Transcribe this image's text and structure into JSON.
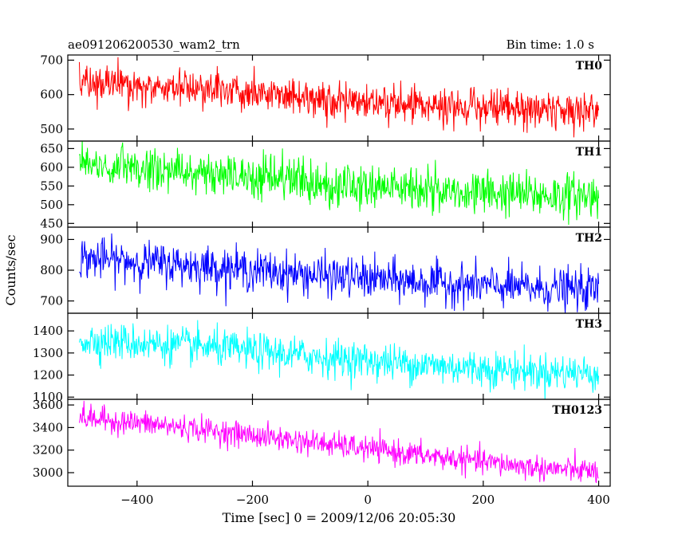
{
  "chart_data": {
    "type": "line",
    "title": "ae091206200530_wam2_trn",
    "bin_time": "Bin time: 1.0 s",
    "xlabel": "Time [sec] 0 = 2009/12/06 20:05:30",
    "ylabel": "Counts/sec",
    "xlim": [
      -520,
      420
    ],
    "x_range": [
      -500,
      400
    ],
    "x_ticks": [
      -400,
      -200,
      0,
      200,
      400
    ],
    "x_tick_labels": [
      "−400",
      "−200",
      "0",
      "200",
      "400"
    ],
    "grid": false,
    "series": [
      {
        "name": "TH0",
        "color": "#ff0000",
        "ylim": [
          465,
          715
        ],
        "y_ticks": [
          500,
          600,
          700
        ],
        "trend": [
          [
            -500,
            640
          ],
          [
            -300,
            615
          ],
          [
            -100,
            590
          ],
          [
            100,
            570
          ],
          [
            300,
            555
          ],
          [
            400,
            550
          ]
        ],
        "noise_sd": 27
      },
      {
        "name": "TH1",
        "color": "#00ff00",
        "ylim": [
          440,
          670
        ],
        "y_ticks": [
          450,
          500,
          550,
          600,
          650
        ],
        "trend": [
          [
            -500,
            610
          ],
          [
            -300,
            585
          ],
          [
            -100,
            560
          ],
          [
            100,
            540
          ],
          [
            300,
            525
          ],
          [
            400,
            525
          ]
        ],
        "noise_sd": 30
      },
      {
        "name": "TH2",
        "color": "#0000ff",
        "ylim": [
          660,
          940
        ],
        "y_ticks": [
          700,
          800,
          900
        ],
        "trend": [
          [
            -500,
            840
          ],
          [
            -300,
            815
          ],
          [
            -100,
            785
          ],
          [
            100,
            760
          ],
          [
            300,
            740
          ],
          [
            400,
            735
          ]
        ],
        "noise_sd": 33
      },
      {
        "name": "TH3",
        "color": "#00ffff",
        "ylim": [
          1090,
          1480
        ],
        "y_ticks": [
          1100,
          1200,
          1300,
          1400
        ],
        "trend": [
          [
            -500,
            1360
          ],
          [
            -300,
            1330
          ],
          [
            -100,
            1285
          ],
          [
            100,
            1245
          ],
          [
            300,
            1215
          ],
          [
            400,
            1210
          ]
        ],
        "noise_sd": 42
      },
      {
        "name": "TH0123",
        "color": "#ff00ff",
        "ylim": [
          2880,
          3650
        ],
        "y_ticks": [
          3000,
          3200,
          3400,
          3600
        ],
        "trend": [
          [
            -500,
            3490
          ],
          [
            -300,
            3390
          ],
          [
            -100,
            3270
          ],
          [
            100,
            3150
          ],
          [
            300,
            3040
          ],
          [
            400,
            3010
          ]
        ],
        "noise_sd": 55
      }
    ]
  }
}
